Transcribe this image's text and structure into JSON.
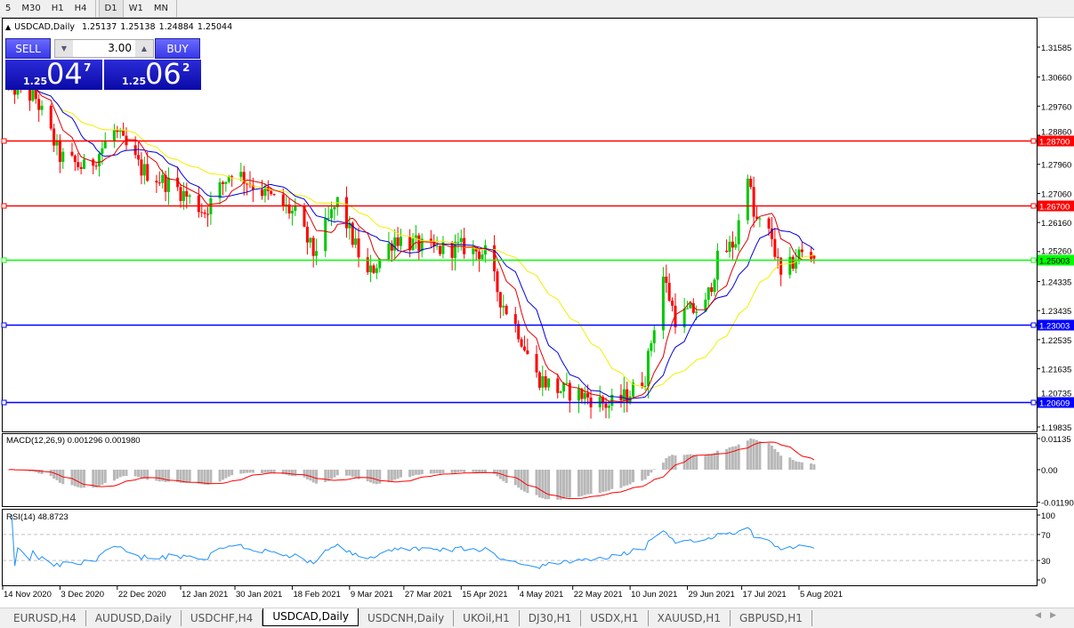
{
  "toolbar": {
    "timeframes": [
      {
        "label": "5"
      },
      {
        "label": "M30"
      },
      {
        "label": "H1"
      },
      {
        "label": "H4"
      },
      {
        "label": "D1",
        "active": true
      },
      {
        "label": "W1"
      },
      {
        "label": "MN"
      }
    ]
  },
  "header": {
    "symbol": "USDCAD,Daily",
    "open": "1.25137",
    "high": "1.25138",
    "low": "1.24884",
    "close": "1.25044"
  },
  "trade_panel": {
    "sell_label": "SELL",
    "buy_label": "BUY",
    "lot": "3.00",
    "sell_price": {
      "prefix": "1.25",
      "big": "04",
      "sup": "7"
    },
    "buy_price": {
      "prefix": "1.25",
      "big": "06",
      "sup": "2"
    }
  },
  "colors": {
    "bull": "#00c800",
    "bear": "#ff0000",
    "ma_fast": "#e00000",
    "ma_mid": "#0000e0",
    "ma_slow": "#f0f000",
    "rsi": "#1e90ff",
    "macd_hist": "#b8b8b8",
    "macd_signal": "#ff0000"
  },
  "chart_data": {
    "type": "candlestick",
    "price_ticks": [
      "1.31585",
      "1.30660",
      "1.29760",
      "1.28860",
      "1.27960",
      "1.27060",
      "1.26160",
      "1.25260",
      "1.24335",
      "1.23435",
      "1.22535",
      "1.21635",
      "1.20735",
      "1.19835"
    ],
    "levels": [
      {
        "price": "1.28700",
        "color": "#ff0000"
      },
      {
        "price": "1.26700",
        "color": "#ff0000"
      },
      {
        "price": "1.25003",
        "color": "#00ff00"
      },
      {
        "price": "1.23003",
        "color": "#0000ff"
      },
      {
        "price": "1.20609",
        "color": "#0000ff"
      }
    ],
    "date_ticks": [
      "14 Nov 2020",
      "3 Dec 2020",
      "22 Dec 2020",
      "12 Jan 2021",
      "30 Jan 2021",
      "18 Feb 2021",
      "9 Mar 2021",
      "27 Mar 2021",
      "15 Apr 2021",
      "4 May 2021",
      "22 May 2021",
      "10 Jun 2021",
      "29 Jun 2021",
      "17 Jul 2021",
      "5 Aug 2021"
    ],
    "close_path": [
      [
        "2020-11-16",
        1.304
      ],
      [
        "2020-11-25",
        1.3
      ],
      [
        "2020-12-03",
        1.282
      ],
      [
        "2020-12-12",
        1.278
      ],
      [
        "2020-12-21",
        1.29
      ],
      [
        "2020-12-30",
        1.278
      ],
      [
        "2021-01-11",
        1.272
      ],
      [
        "2021-01-20",
        1.265
      ],
      [
        "2021-01-29",
        1.278
      ],
      [
        "2021-02-10",
        1.27
      ],
      [
        "2021-02-19",
        1.264
      ],
      [
        "2021-02-25",
        1.252
      ],
      [
        "2021-03-05",
        1.268
      ],
      [
        "2021-03-15",
        1.245
      ],
      [
        "2021-03-24",
        1.257
      ],
      [
        "2021-04-05",
        1.253
      ],
      [
        "2021-04-16",
        1.254
      ],
      [
        "2021-04-23",
        1.252
      ],
      [
        "2021-04-28",
        1.238
      ],
      [
        "2021-05-04",
        1.228
      ],
      [
        "2021-05-10",
        1.214
      ],
      [
        "2021-05-17",
        1.21
      ],
      [
        "2021-05-26",
        1.208
      ],
      [
        "2021-06-03",
        1.205
      ],
      [
        "2021-06-09",
        1.208
      ],
      [
        "2021-06-15",
        1.214
      ],
      [
        "2021-06-17",
        1.225
      ],
      [
        "2021-06-21",
        1.245
      ],
      [
        "2021-06-25",
        1.232
      ],
      [
        "2021-07-05",
        1.236
      ],
      [
        "2021-07-09",
        1.25
      ],
      [
        "2021-07-15",
        1.256
      ],
      [
        "2021-07-19",
        1.278
      ],
      [
        "2021-07-21",
        1.263
      ],
      [
        "2021-07-27",
        1.257
      ],
      [
        "2021-07-30",
        1.244
      ],
      [
        "2021-08-05",
        1.252
      ],
      [
        "2021-08-10",
        1.25044
      ]
    ],
    "macd": {
      "label": "MACD(12,26,9) 0.001296 0.001980",
      "ticks": [
        "0.01135",
        "0.00",
        "-0.01190"
      ]
    },
    "rsi": {
      "label": "RSI(14) 48.8723",
      "ticks": [
        "100",
        "70",
        "30",
        "0"
      ],
      "levels": [
        70,
        30
      ]
    }
  },
  "tabs": [
    {
      "label": "EURUSD,H4"
    },
    {
      "label": "AUDUSD,Daily"
    },
    {
      "label": "USDCHF,H4"
    },
    {
      "label": "USDCAD,Daily",
      "active": true
    },
    {
      "label": "USDCNH,Daily"
    },
    {
      "label": "UKOil,H1"
    },
    {
      "label": "DJ30,H1"
    },
    {
      "label": "USDX,H1"
    },
    {
      "label": "XAUUSD,H1"
    },
    {
      "label": "GBPUSD,H1"
    }
  ]
}
